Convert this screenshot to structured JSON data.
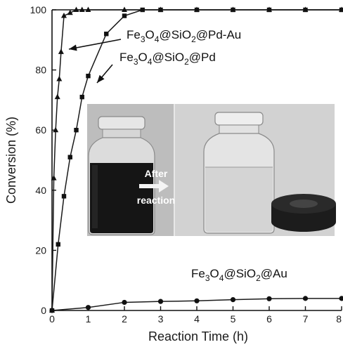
{
  "chart_data": {
    "type": "line",
    "xlabel": "Reaction Time (h)",
    "ylabel": "Conversion (%)",
    "xlim": [
      0,
      8
    ],
    "ylim": [
      0,
      100
    ],
    "xticks": [
      "0",
      "1",
      "2",
      "3",
      "4",
      "5",
      "6",
      "7",
      "8"
    ],
    "yticks": [
      "0",
      "20",
      "40",
      "60",
      "80",
      "100"
    ],
    "series": [
      {
        "name": "Fe3O4@SiO2@Pd-Au",
        "label_parts": [
          "Fe",
          "3",
          "O",
          "4",
          "@SiO",
          "2",
          "@Pd-Au"
        ],
        "marker": "triangle",
        "x": [
          0,
          0.05,
          0.1,
          0.15,
          0.2,
          0.25,
          0.33,
          0.5,
          0.67,
          0.83,
          1,
          2,
          3,
          4,
          5,
          6,
          7,
          8
        ],
        "y": [
          0,
          44,
          60,
          71,
          77,
          86,
          98,
          99,
          100,
          100,
          100,
          100,
          100,
          100,
          100,
          100,
          100,
          100
        ]
      },
      {
        "name": "Fe3O4@SiO2@Pd",
        "label_parts": [
          "Fe",
          "3",
          "O",
          "4",
          "@SiO",
          "2",
          "@Pd"
        ],
        "marker": "square",
        "x": [
          0,
          0.17,
          0.33,
          0.5,
          0.67,
          0.83,
          1,
          1.5,
          2,
          2.5,
          3,
          4,
          5,
          6,
          7,
          8
        ],
        "y": [
          0,
          22,
          38,
          51,
          60,
          71,
          78,
          92,
          98,
          100,
          100,
          100,
          100,
          100,
          100,
          100
        ]
      },
      {
        "name": "Fe3O4@SiO2@Au",
        "label_parts": [
          "Fe",
          "3",
          "O",
          "4",
          "@SiO",
          "2",
          "@Au"
        ],
        "marker": "circle",
        "x": [
          0,
          1,
          2,
          3,
          4,
          5,
          6,
          7,
          8
        ],
        "y": [
          0,
          1,
          2.7,
          3,
          3.2,
          3.6,
          3.9,
          4,
          4
        ]
      }
    ]
  },
  "inset": {
    "arrow_text_line1": "After",
    "arrow_text_line2": "reaction"
  }
}
